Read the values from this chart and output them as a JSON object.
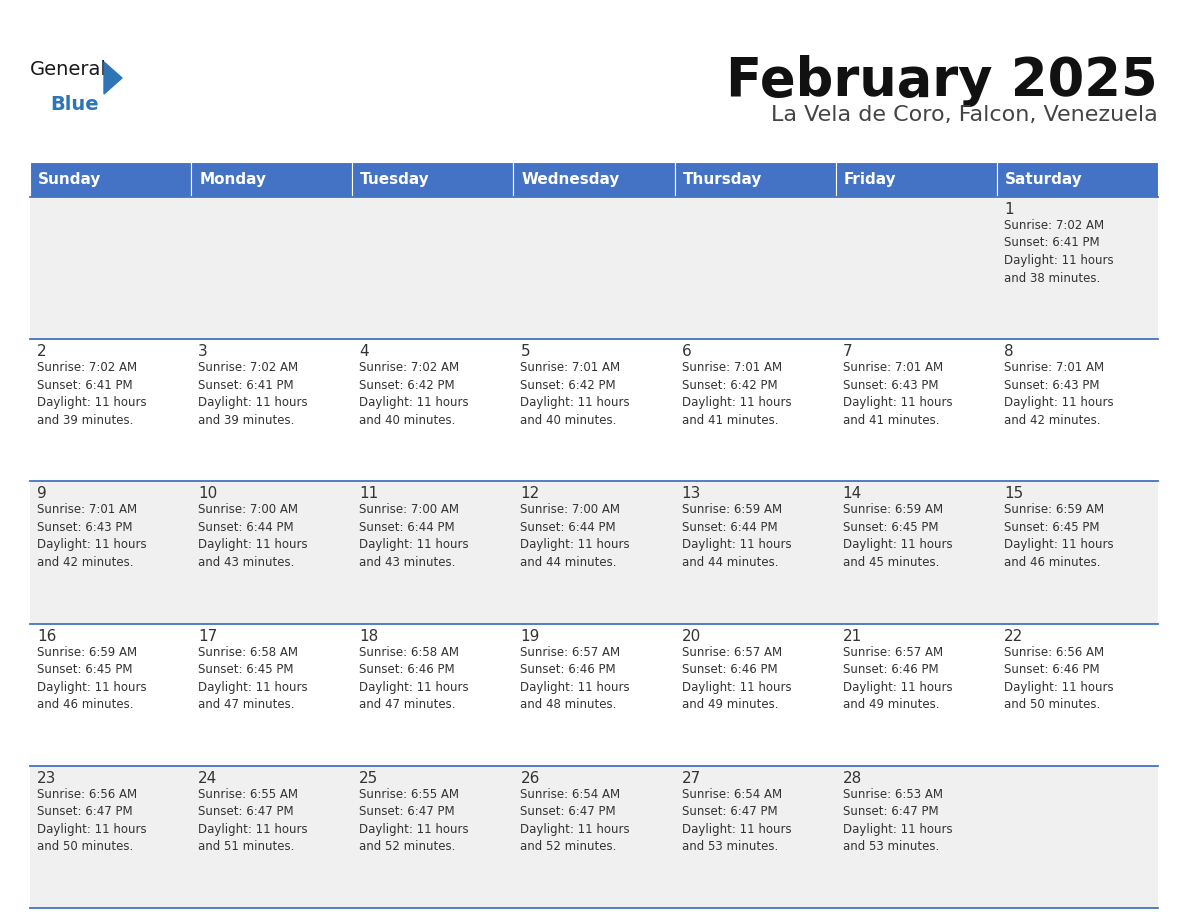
{
  "title": "February 2025",
  "subtitle": "La Vela de Coro, Falcon, Venezuela",
  "header_color": "#4472C4",
  "header_text_color": "#FFFFFF",
  "bg_color": "#FFFFFF",
  "alt_row_color": "#F0F0F0",
  "border_color": "#4472C4",
  "text_color": "#333333",
  "days_of_week": [
    "Sunday",
    "Monday",
    "Tuesday",
    "Wednesday",
    "Thursday",
    "Friday",
    "Saturday"
  ],
  "calendar_data": [
    [
      null,
      null,
      null,
      null,
      null,
      null,
      {
        "day": "1",
        "sunrise": "7:02 AM",
        "sunset": "6:41 PM",
        "daylight": "11 hours\nand 38 minutes."
      }
    ],
    [
      {
        "day": "2",
        "sunrise": "7:02 AM",
        "sunset": "6:41 PM",
        "daylight": "11 hours\nand 39 minutes."
      },
      {
        "day": "3",
        "sunrise": "7:02 AM",
        "sunset": "6:41 PM",
        "daylight": "11 hours\nand 39 minutes."
      },
      {
        "day": "4",
        "sunrise": "7:02 AM",
        "sunset": "6:42 PM",
        "daylight": "11 hours\nand 40 minutes."
      },
      {
        "day": "5",
        "sunrise": "7:01 AM",
        "sunset": "6:42 PM",
        "daylight": "11 hours\nand 40 minutes."
      },
      {
        "day": "6",
        "sunrise": "7:01 AM",
        "sunset": "6:42 PM",
        "daylight": "11 hours\nand 41 minutes."
      },
      {
        "day": "7",
        "sunrise": "7:01 AM",
        "sunset": "6:43 PM",
        "daylight": "11 hours\nand 41 minutes."
      },
      {
        "day": "8",
        "sunrise": "7:01 AM",
        "sunset": "6:43 PM",
        "daylight": "11 hours\nand 42 minutes."
      }
    ],
    [
      {
        "day": "9",
        "sunrise": "7:01 AM",
        "sunset": "6:43 PM",
        "daylight": "11 hours\nand 42 minutes."
      },
      {
        "day": "10",
        "sunrise": "7:00 AM",
        "sunset": "6:44 PM",
        "daylight": "11 hours\nand 43 minutes."
      },
      {
        "day": "11",
        "sunrise": "7:00 AM",
        "sunset": "6:44 PM",
        "daylight": "11 hours\nand 43 minutes."
      },
      {
        "day": "12",
        "sunrise": "7:00 AM",
        "sunset": "6:44 PM",
        "daylight": "11 hours\nand 44 minutes."
      },
      {
        "day": "13",
        "sunrise": "6:59 AM",
        "sunset": "6:44 PM",
        "daylight": "11 hours\nand 44 minutes."
      },
      {
        "day": "14",
        "sunrise": "6:59 AM",
        "sunset": "6:45 PM",
        "daylight": "11 hours\nand 45 minutes."
      },
      {
        "day": "15",
        "sunrise": "6:59 AM",
        "sunset": "6:45 PM",
        "daylight": "11 hours\nand 46 minutes."
      }
    ],
    [
      {
        "day": "16",
        "sunrise": "6:59 AM",
        "sunset": "6:45 PM",
        "daylight": "11 hours\nand 46 minutes."
      },
      {
        "day": "17",
        "sunrise": "6:58 AM",
        "sunset": "6:45 PM",
        "daylight": "11 hours\nand 47 minutes."
      },
      {
        "day": "18",
        "sunrise": "6:58 AM",
        "sunset": "6:46 PM",
        "daylight": "11 hours\nand 47 minutes."
      },
      {
        "day": "19",
        "sunrise": "6:57 AM",
        "sunset": "6:46 PM",
        "daylight": "11 hours\nand 48 minutes."
      },
      {
        "day": "20",
        "sunrise": "6:57 AM",
        "sunset": "6:46 PM",
        "daylight": "11 hours\nand 49 minutes."
      },
      {
        "day": "21",
        "sunrise": "6:57 AM",
        "sunset": "6:46 PM",
        "daylight": "11 hours\nand 49 minutes."
      },
      {
        "day": "22",
        "sunrise": "6:56 AM",
        "sunset": "6:46 PM",
        "daylight": "11 hours\nand 50 minutes."
      }
    ],
    [
      {
        "day": "23",
        "sunrise": "6:56 AM",
        "sunset": "6:47 PM",
        "daylight": "11 hours\nand 50 minutes."
      },
      {
        "day": "24",
        "sunrise": "6:55 AM",
        "sunset": "6:47 PM",
        "daylight": "11 hours\nand 51 minutes."
      },
      {
        "day": "25",
        "sunrise": "6:55 AM",
        "sunset": "6:47 PM",
        "daylight": "11 hours\nand 52 minutes."
      },
      {
        "day": "26",
        "sunrise": "6:54 AM",
        "sunset": "6:47 PM",
        "daylight": "11 hours\nand 52 minutes."
      },
      {
        "day": "27",
        "sunrise": "6:54 AM",
        "sunset": "6:47 PM",
        "daylight": "11 hours\nand 53 minutes."
      },
      {
        "day": "28",
        "sunrise": "6:53 AM",
        "sunset": "6:47 PM",
        "daylight": "11 hours\nand 53 minutes."
      },
      null
    ]
  ],
  "logo_color_general": "#1a1a1a",
  "logo_color_blue": "#2E75B6",
  "logo_triangle_color": "#2E75B6",
  "title_fontsize": 38,
  "subtitle_fontsize": 16,
  "header_fontsize": 11,
  "day_number_fontsize": 11,
  "cell_text_fontsize": 8.5
}
